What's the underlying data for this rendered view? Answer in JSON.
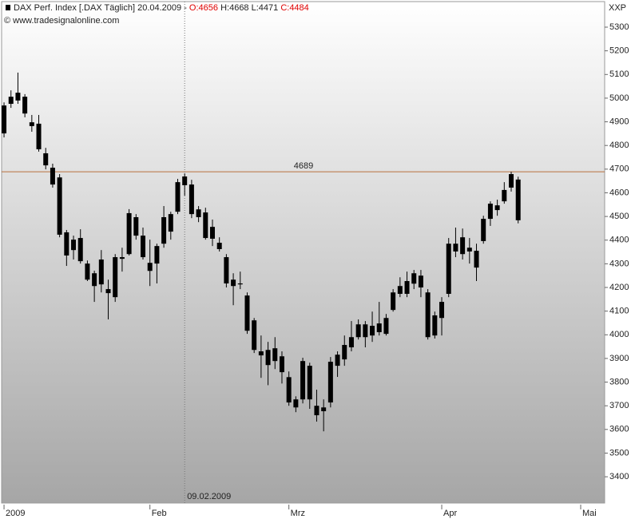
{
  "chart_data": {
    "type": "candlestick",
    "title": "DAX Perf. Index [.DAX Täglich] 20.04.2009 -",
    "header_open": "O:4656",
    "header_high_low": "H:4668 L:4471",
    "header_close": "C:4484",
    "source": "© www.tradesignalonline.com",
    "y_axis_label": "XXP",
    "open": [
      4851,
      4976,
      4990,
      5006,
      4898,
      4892,
      4767,
      4706,
      4665,
      4433,
      4402,
      4409,
      4301,
      4260,
      4213,
      4193,
      4159,
      4328,
      4341,
      4497,
      4419,
      4304,
      4301,
      4385,
      4510,
      4520,
      4669,
      4635,
      4530,
      4517,
      4456,
      4389,
      4328,
      4233,
      4217,
      4166,
      4061,
      3930,
      3872,
      3943,
      3909,
      3821,
      3727,
      3727,
      3869,
      3700,
      3693,
      3714,
      3869,
      3896,
      3947,
      4044,
      4044,
      3997,
      4048,
      4004,
      4105,
      4173,
      4227,
      4216,
      4250,
      4179,
      3997,
      4071,
      4173,
      4385,
      4412,
      4368,
      4355,
      4396,
      4490,
      4547,
      4564,
      4622,
      4656
    ],
    "high": [
      4982,
      5033,
      5108,
      5017,
      4929,
      4929,
      4790,
      4723,
      4679,
      4443,
      4419,
      4446,
      4314,
      4271,
      4358,
      4233,
      4341,
      4368,
      4531,
      4510,
      4453,
      4402,
      4385,
      4544,
      4520,
      4659,
      4682,
      4655,
      4544,
      4537,
      4487,
      4412,
      4341,
      4260,
      4267,
      4179,
      4071,
      3997,
      3970,
      3990,
      3930,
      3845,
      3740,
      3903,
      3882,
      3768,
      3727,
      3906,
      3930,
      3997,
      4058,
      4065,
      4058,
      4098,
      4139,
      4088,
      4193,
      4243,
      4267,
      4274,
      4274,
      4193,
      4098,
      4159,
      4409,
      4453,
      4449,
      4409,
      4385,
      4503,
      4564,
      4571,
      4645,
      4689,
      4668
    ],
    "low": [
      4834,
      4959,
      4976,
      4919,
      4858,
      4774,
      4699,
      4622,
      4412,
      4291,
      4318,
      4301,
      4227,
      4139,
      4179,
      4065,
      4139,
      4267,
      4335,
      4402,
      4318,
      4206,
      4217,
      4368,
      4402,
      4510,
      4588,
      4493,
      4476,
      4402,
      4375,
      4352,
      4200,
      4125,
      4193,
      4004,
      3923,
      3818,
      3787,
      3855,
      3794,
      3700,
      3673,
      3710,
      3687,
      3633,
      3592,
      3693,
      3822,
      3869,
      3930,
      3980,
      3947,
      3970,
      3997,
      3997,
      4098,
      4159,
      4159,
      4193,
      4159,
      3980,
      3984,
      3997,
      4159,
      4328,
      4318,
      4301,
      4227,
      4385,
      4460,
      4503,
      4554,
      4605,
      4471
    ],
    "close": [
      4969,
      5006,
      5023,
      4935,
      4882,
      4784,
      4716,
      4635,
      4423,
      4335,
      4358,
      4311,
      4233,
      4206,
      4318,
      4176,
      4328,
      4321,
      4514,
      4419,
      4328,
      4270,
      4375,
      4497,
      4436,
      4645,
      4632,
      4510,
      4497,
      4409,
      4406,
      4362,
      4217,
      4206,
      4213,
      4017,
      3936,
      3913,
      3936,
      3889,
      3842,
      3714,
      3693,
      3889,
      3727,
      3660,
      3677,
      3886,
      3916,
      3957,
      3990,
      3990,
      3990,
      4038,
      4011,
      4071,
      4179,
      4206,
      4173,
      4260,
      4200,
      3990,
      4082,
      4139,
      4385,
      4352,
      4341,
      4352,
      4284,
      4490,
      4554,
      4527,
      4612,
      4679,
      4484
    ],
    "color": "#000000",
    "xlim": [
      -0.35,
      86.45
    ],
    "xticks": [
      {
        "value": 0,
        "label": "2009"
      },
      {
        "value": 21,
        "label": "Feb"
      },
      {
        "value": 41,
        "label": "Mrz"
      },
      {
        "value": 63,
        "label": "Apr"
      },
      {
        "value": 83,
        "label": "Mai"
      }
    ],
    "ylim": [
      3289,
      5408
    ],
    "yticks": [
      3400,
      3500,
      3600,
      3700,
      3800,
      3900,
      4000,
      4100,
      4200,
      4300,
      4400,
      4500,
      4600,
      4700,
      4800,
      4900,
      5000,
      5100,
      5200,
      5300
    ],
    "hline": {
      "value": 4689,
      "color": "#b8703c"
    },
    "crosshair": {
      "index": 26,
      "label": "09.02.2009"
    }
  }
}
